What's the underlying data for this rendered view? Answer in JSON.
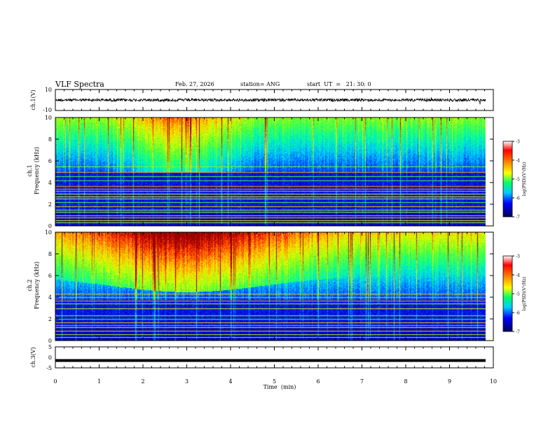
{
  "header": {
    "title": "VLF Spectra",
    "date": "Feb. 27, 2026",
    "station": "station= ANG",
    "start": "start  UT  =   21: 30: 0"
  },
  "colorbar": {
    "label": "log(PSD)(V²/Hz)",
    "ticks": [
      -3,
      -4,
      -5,
      -6,
      -7
    ],
    "colors": [
      "#7f0000",
      "#ff0000",
      "#ff8000",
      "#ffff00",
      "#80ff00",
      "#00ff40",
      "#00ffff",
      "#0080ff",
      "#0000ff",
      "#000080"
    ]
  },
  "chart_data": [
    {
      "type": "line",
      "ylabel": "ch.1(V)",
      "ylim": [
        -10,
        10
      ],
      "yticks": [
        "10",
        "-10"
      ],
      "baseline": 0,
      "noise": "strong"
    },
    {
      "type": "heatmap",
      "ylabel": "ch.1\nFrequency (kHz)",
      "ylim": [
        0,
        10
      ],
      "yticks": [
        "0",
        "2",
        "4",
        "6",
        "8",
        "10"
      ],
      "lines_khz": [
        0.3,
        0.5,
        0.8,
        1.0,
        1.3,
        1.5,
        1.8,
        2.2,
        2.5,
        2.7,
        3.0,
        3.2,
        3.4,
        3.7,
        4.2,
        4.6,
        5.0,
        5.5
      ],
      "cutoff_khz": 5.0,
      "emission": {
        "center_min": 2.8,
        "width_min": 1.1,
        "floor_khz": 5.3
      }
    },
    {
      "type": "heatmap",
      "ylabel": "ch.2\nFrequency (kHz)",
      "ylim": [
        0,
        10
      ],
      "yticks": [
        "0",
        "2",
        "4",
        "6",
        "8",
        "10"
      ],
      "lines_khz": [
        0.3,
        0.6,
        0.9,
        1.2,
        1.4,
        1.7,
        2.0,
        2.3,
        3.0,
        3.4,
        3.7,
        4.0,
        4.3
      ],
      "cutoff_khz": 3.8,
      "emission": {
        "center_min": 3.0,
        "width_min": 2.5,
        "floor_khz": 6.0
      }
    },
    {
      "type": "line",
      "ylabel": "ch.3(V)",
      "ylim": [
        -5,
        5
      ],
      "yticks": [
        "5",
        "0",
        "-5"
      ],
      "baseline": -1.5,
      "noise": "flat"
    }
  ],
  "xaxis": {
    "label": "Time  (min)",
    "xlim": [
      0,
      10
    ],
    "ticks": [
      "0",
      "1",
      "2",
      "3",
      "4",
      "5",
      "6",
      "7",
      "8",
      "9",
      "10"
    ],
    "data_end_min": 9.83
  }
}
